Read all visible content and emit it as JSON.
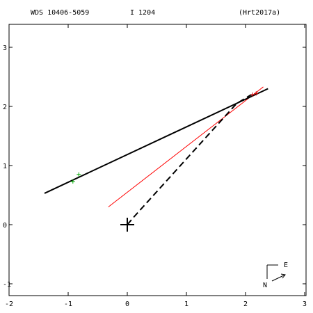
{
  "header": {
    "designation": "WDS 10406-5059",
    "discoverer": "I  1204",
    "reference": "(Hrt2017a)"
  },
  "compass": {
    "east_label": "E",
    "north_label": "N"
  },
  "colors": {
    "orbit": "#000000",
    "red_line": "#ff0000",
    "green_marks": "#00aa00",
    "red_marks": "#cc0000",
    "axes": "#000000"
  },
  "chart_data": {
    "type": "scatter",
    "title": "",
    "xlabel": "",
    "ylabel": "",
    "xlim": [
      -2,
      3
    ],
    "ylim": [
      -1,
      3
    ],
    "x_ticks": [
      -2,
      -1,
      0,
      1,
      2,
      3
    ],
    "y_ticks": [
      -1,
      0,
      1,
      2,
      3
    ],
    "x_tick_labels": [
      "-2",
      "-1",
      "0",
      "1",
      "2",
      "3"
    ],
    "y_tick_labels": [
      "-1",
      "0",
      "1",
      "2",
      "3"
    ],
    "grid": false,
    "primary": {
      "x": 0,
      "y": 0
    },
    "orbit_line": [
      {
        "x": -1.4,
        "y": 0.53
      },
      {
        "x": 2.38,
        "y": 2.3
      }
    ],
    "red_line": [
      {
        "x": -0.32,
        "y": 0.3
      },
      {
        "x": 2.3,
        "y": 2.33
      }
    ],
    "dashed_line": [
      {
        "x": 0,
        "y": 0
      },
      {
        "x": 0.12,
        "y": 0.14
      },
      {
        "x": 1.85,
        "y": 2.05
      },
      {
        "x": 2.1,
        "y": 2.2
      }
    ],
    "green_points": [
      {
        "x": -0.82,
        "y": 0.85
      },
      {
        "x": -0.92,
        "y": 0.73
      }
    ],
    "red_points": [
      {
        "x": 2.12,
        "y": 2.2
      },
      {
        "x": 2.18,
        "y": 2.22
      }
    ]
  }
}
